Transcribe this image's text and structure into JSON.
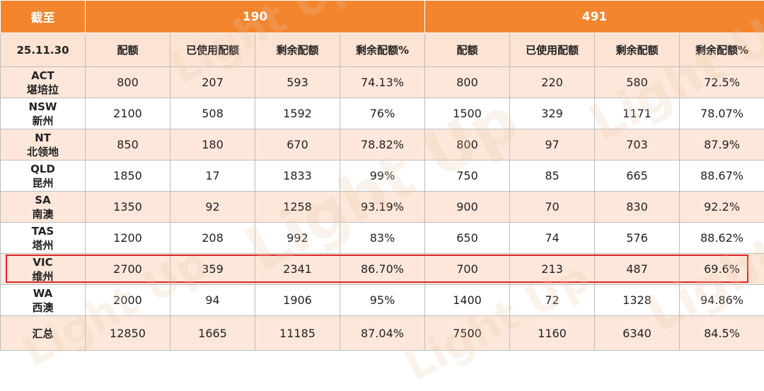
{
  "header": {
    "corner": "截至",
    "group_190": "190",
    "group_491": "491"
  },
  "subheader": {
    "date": "25.11.30",
    "cols": [
      "配额",
      "已使用配额",
      "剩余配额",
      "剩余配额%",
      "配额",
      "已使用配额",
      "剩余配额",
      "剩余配额%"
    ]
  },
  "rows": [
    {
      "code": "ACT",
      "name": "堪培拉",
      "v": [
        "800",
        "207",
        "593",
        "74.13%",
        "800",
        "220",
        "580",
        "72.5%"
      ]
    },
    {
      "code": "NSW",
      "name": "新州",
      "v": [
        "2100",
        "508",
        "1592",
        "76%",
        "1500",
        "329",
        "1171",
        "78.07%"
      ]
    },
    {
      "code": "NT",
      "name": "北领地",
      "v": [
        "850",
        "180",
        "670",
        "78.82%",
        "800",
        "97",
        "703",
        "87.9%"
      ]
    },
    {
      "code": "QLD",
      "name": "昆州",
      "v": [
        "1850",
        "17",
        "1833",
        "99%",
        "750",
        "85",
        "665",
        "88.67%"
      ]
    },
    {
      "code": "SA",
      "name": "南澳",
      "v": [
        "1350",
        "92",
        "1258",
        "93.19%",
        "900",
        "70",
        "830",
        "92.2%"
      ]
    },
    {
      "code": "TAS",
      "name": "塔州",
      "v": [
        "1200",
        "208",
        "992",
        "83%",
        "650",
        "74",
        "576",
        "88.62%"
      ]
    },
    {
      "code": "VIC",
      "name": "维州",
      "v": [
        "2700",
        "359",
        "2341",
        "86.70%",
        "700",
        "213",
        "487",
        "69.6%"
      ]
    },
    {
      "code": "WA",
      "name": "西澳",
      "v": [
        "2000",
        "94",
        "1906",
        "95%",
        "1400",
        "72",
        "1328",
        "94.86%"
      ]
    }
  ],
  "total": {
    "label": "汇总",
    "v": [
      "12850",
      "1665",
      "11185",
      "87.04%",
      "7500",
      "1160",
      "6340",
      "84.5%"
    ]
  },
  "watermark": {
    "text": "Light Up"
  },
  "colors": {
    "header_orange": "#f2852e",
    "row_tint": "#fde7da",
    "highlight_red": "#e0262b"
  }
}
